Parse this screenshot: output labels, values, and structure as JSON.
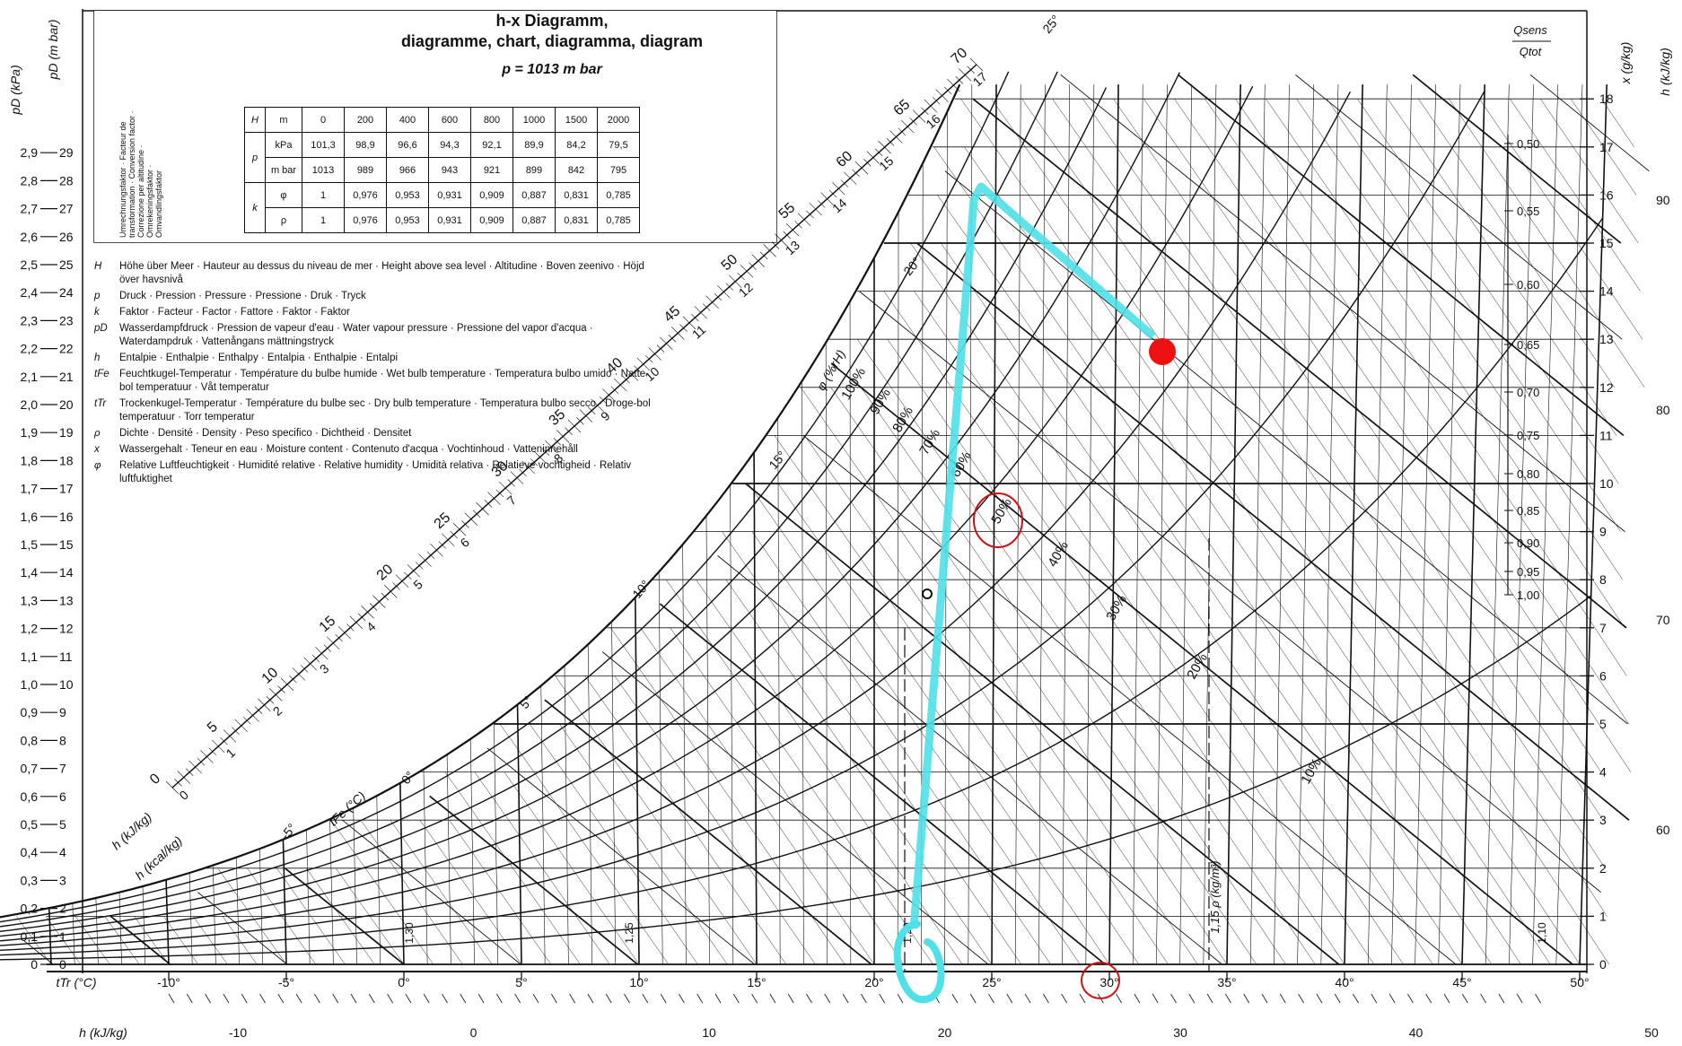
{
  "title": {
    "line1": "h-x  Diagramm,",
    "line2": "diagramme, chart, diagramma, diagram",
    "pressure": "p = 1013 m bar"
  },
  "altitude_table": {
    "H_symbol": "H",
    "H_unit": "m",
    "H_values": [
      "0",
      "200",
      "400",
      "600",
      "800",
      "1000",
      "1500",
      "2000"
    ],
    "p_symbol": "p",
    "kPa_unit": "kPa",
    "kPa_values": [
      "101,3",
      "98,9",
      "96,6",
      "94,3",
      "92,1",
      "89,9",
      "84,2",
      "79,5"
    ],
    "mbar_unit": "m bar",
    "mbar_values": [
      "1013",
      "989",
      "966",
      "943",
      "921",
      "899",
      "842",
      "795"
    ],
    "k_symbol": "k",
    "phi_symbol": "φ",
    "phi_values": [
      "1",
      "0,976",
      "0,953",
      "0,931",
      "0,909",
      "0,887",
      "0,831",
      "0,785"
    ],
    "rho_symbol": "ρ",
    "rho_values": [
      "1",
      "0,976",
      "0,953",
      "0,931",
      "0,909",
      "0,887",
      "0,831",
      "0,785"
    ],
    "factor_label": "Umrechnungsfaktor · Facteur de transformation · Conversion factor · Correzione per altitudine · Omrekeningsfaktor · Omvandlingsfaktor"
  },
  "legend": [
    {
      "sym": "H",
      "text": "Höhe über Meer · Hauteur au dessus du niveau de mer · Height above sea level · Altitudine · Boven zeenivo · Höjd över havsnivå"
    },
    {
      "sym": "p",
      "text": "Druck · Pression · Pressure · Pressione · Druk · Tryck"
    },
    {
      "sym": "k",
      "text": "Faktor · Facteur · Factor · Fattore · Faktor · Faktor"
    },
    {
      "sym": "pD",
      "text": "Wasserdampfdruck · Pression de vapeur d'eau · Water vapour pressure · Pressione del vapor d'acqua · Waterdampdruk · Vattenångans mättningstryck"
    },
    {
      "sym": "h",
      "text": "Entalpie · Enthalpie · Enthalpy · Entalpia · Enthalpie · Entalpi"
    },
    {
      "sym": "tFe",
      "text": "Feuchtkugel-Temperatur · Température du bulbe humide · Wet bulb temperature · Temperatura bulbo umido · Natte-bol temperatuur · Våt temperatur"
    },
    {
      "sym": "tTr",
      "text": "Trockenkugel-Temperatur · Température du bulbe sec · Dry bulb temperature · Temperatura bulbo secco · Droge-bol temperatuur · Torr temperatur"
    },
    {
      "sym": "ρ",
      "text": "Dichte · Densité · Density · Peso specifico · Dichtheid · Densitet"
    },
    {
      "sym": "x",
      "text": "Wassergehalt · Teneur en eau · Moisture content · Contenuto d'acqua · Vochtinhoud · Vatteninnehåll"
    },
    {
      "sym": "φ",
      "text": "Relative Luftfeuchtigkeit · Humidité relative · Relative humidity · Umidità relativa · Relatieve vochtigheid · Relativ luftfuktighet"
    }
  ],
  "axes": {
    "pD_kPa_label": "pD (kPa)",
    "pD_mbar_label": "pD (m bar)",
    "kPa_ticks": [
      "0",
      "0,1",
      "0,2",
      "0,3",
      "0,4",
      "0,5",
      "0,6",
      "0,7",
      "0,8",
      "0,9",
      "1,0",
      "1,1",
      "1,2",
      "1,3",
      "1,4",
      "1,5",
      "1,6",
      "1,7",
      "1,8",
      "1,9",
      "2,0",
      "2,1",
      "2,2",
      "2,3",
      "2,4",
      "2,5",
      "2,6",
      "2,7",
      "2,8",
      "2,9"
    ],
    "mbar_ticks": [
      "0",
      "1",
      "2",
      "3",
      "4",
      "5",
      "6",
      "7",
      "8",
      "9",
      "10",
      "11",
      "12",
      "13",
      "14",
      "15",
      "16",
      "17",
      "18",
      "19",
      "20",
      "21",
      "22",
      "23",
      "24",
      "25",
      "26",
      "27",
      "28",
      "29"
    ],
    "t_label": "tTr (°C)",
    "t_ticks": [
      "-10°",
      "-5°",
      "0°",
      "5°",
      "10°",
      "15°",
      "20°",
      "25°",
      "30°",
      "35°",
      "40°",
      "45°",
      "50°"
    ],
    "h_bottom_label": "h (kJ/kg)",
    "h_bottom_ticks": [
      "-10",
      "0",
      "10",
      "20",
      "30",
      "40",
      "50"
    ],
    "x_label": "x (g/kg)",
    "x_ticks": [
      "0",
      "1",
      "2",
      "3",
      "4",
      "5",
      "6",
      "7",
      "8",
      "9",
      "10",
      "11",
      "12",
      "13",
      "14",
      "15",
      "16",
      "17",
      "18"
    ],
    "h_right_label": "h (kJ/kg)",
    "h_right_ticks": [
      "60",
      "70",
      "80",
      "90"
    ],
    "q_label_top": "Qsens",
    "q_label_bot": "Qtot",
    "q_ticks": [
      "1,00",
      "0,95",
      "0,90",
      "0,85",
      "0,80",
      "0,75",
      "0,70",
      "0,65",
      "0,60",
      "0,55",
      "0,50"
    ],
    "twb_label": "tFe (°C)",
    "twb_ticks": [
      "-5°",
      "0°",
      "5°",
      "10°",
      "15°",
      "20°",
      "25°"
    ],
    "rh_ticks": [
      "10%",
      "20%",
      "30%",
      "40%",
      "50%",
      "60%",
      "70%",
      "80%",
      "90%",
      "100%"
    ],
    "rh_axis_label": "φ (%rH)",
    "rho_label": "1,15  ρ (kg/m³)",
    "rho_ticks": [
      "1,30",
      "1,25",
      "1,20",
      "1,10"
    ],
    "h_scale_kJ_label": "h (kJ/kg)",
    "h_scale_kcal_label": "h (kcal/kg)",
    "h_scale_kJ_ticks": [
      "0",
      "5",
      "10",
      "15",
      "20",
      "25",
      "30",
      "35",
      "40",
      "45",
      "50",
      "55",
      "60",
      "65",
      "70"
    ],
    "h_scale_kcal_ticks": [
      "0",
      "1",
      "2",
      "3",
      "4",
      "5",
      "6",
      "7",
      "8",
      "9",
      "10",
      "11",
      "12",
      "13",
      "14",
      "15",
      "16",
      "17"
    ]
  },
  "annotations": {
    "cyan_color": "#4fe0e8",
    "red_point_color": "#ee1111",
    "circle_color": "#cc1111",
    "circled_labels": [
      "50%",
      "30°"
    ]
  }
}
